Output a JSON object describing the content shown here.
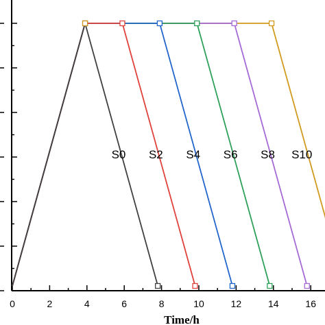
{
  "chart_data": {
    "type": "line",
    "xlabel": "Time/h",
    "ylabel": "",
    "xlim": [
      0,
      17
    ],
    "ylim": [
      0,
      1
    ],
    "x_ticks": [
      0,
      2,
      4,
      6,
      8,
      10,
      12,
      14,
      16
    ],
    "grid": false,
    "series_label_offset_hours": 1.5,
    "series": [
      {
        "name": "S0",
        "color": "#404040",
        "x": [
          0,
          3.9,
          7.8
        ],
        "y": [
          0,
          1,
          0
        ]
      },
      {
        "name": "S2",
        "color": "#e0413a",
        "x": [
          0,
          3.9,
          5.9,
          9.8
        ],
        "y": [
          0,
          1,
          1,
          0
        ]
      },
      {
        "name": "S4",
        "color": "#2266cc",
        "x": [
          0,
          3.9,
          7.9,
          11.8
        ],
        "y": [
          0,
          1,
          1,
          0
        ]
      },
      {
        "name": "S6",
        "color": "#2ea05a",
        "x": [
          0,
          3.9,
          9.9,
          13.8
        ],
        "y": [
          0,
          1,
          1,
          0
        ]
      },
      {
        "name": "S8",
        "color": "#a56ad6",
        "x": [
          0,
          3.9,
          11.9,
          15.8
        ],
        "y": [
          0,
          1,
          1,
          0
        ]
      },
      {
        "name": "S10",
        "color": "#d19a1e",
        "x": [
          0,
          3.9,
          13.9,
          17.8
        ],
        "y": [
          0,
          1,
          1,
          0
        ]
      }
    ]
  }
}
